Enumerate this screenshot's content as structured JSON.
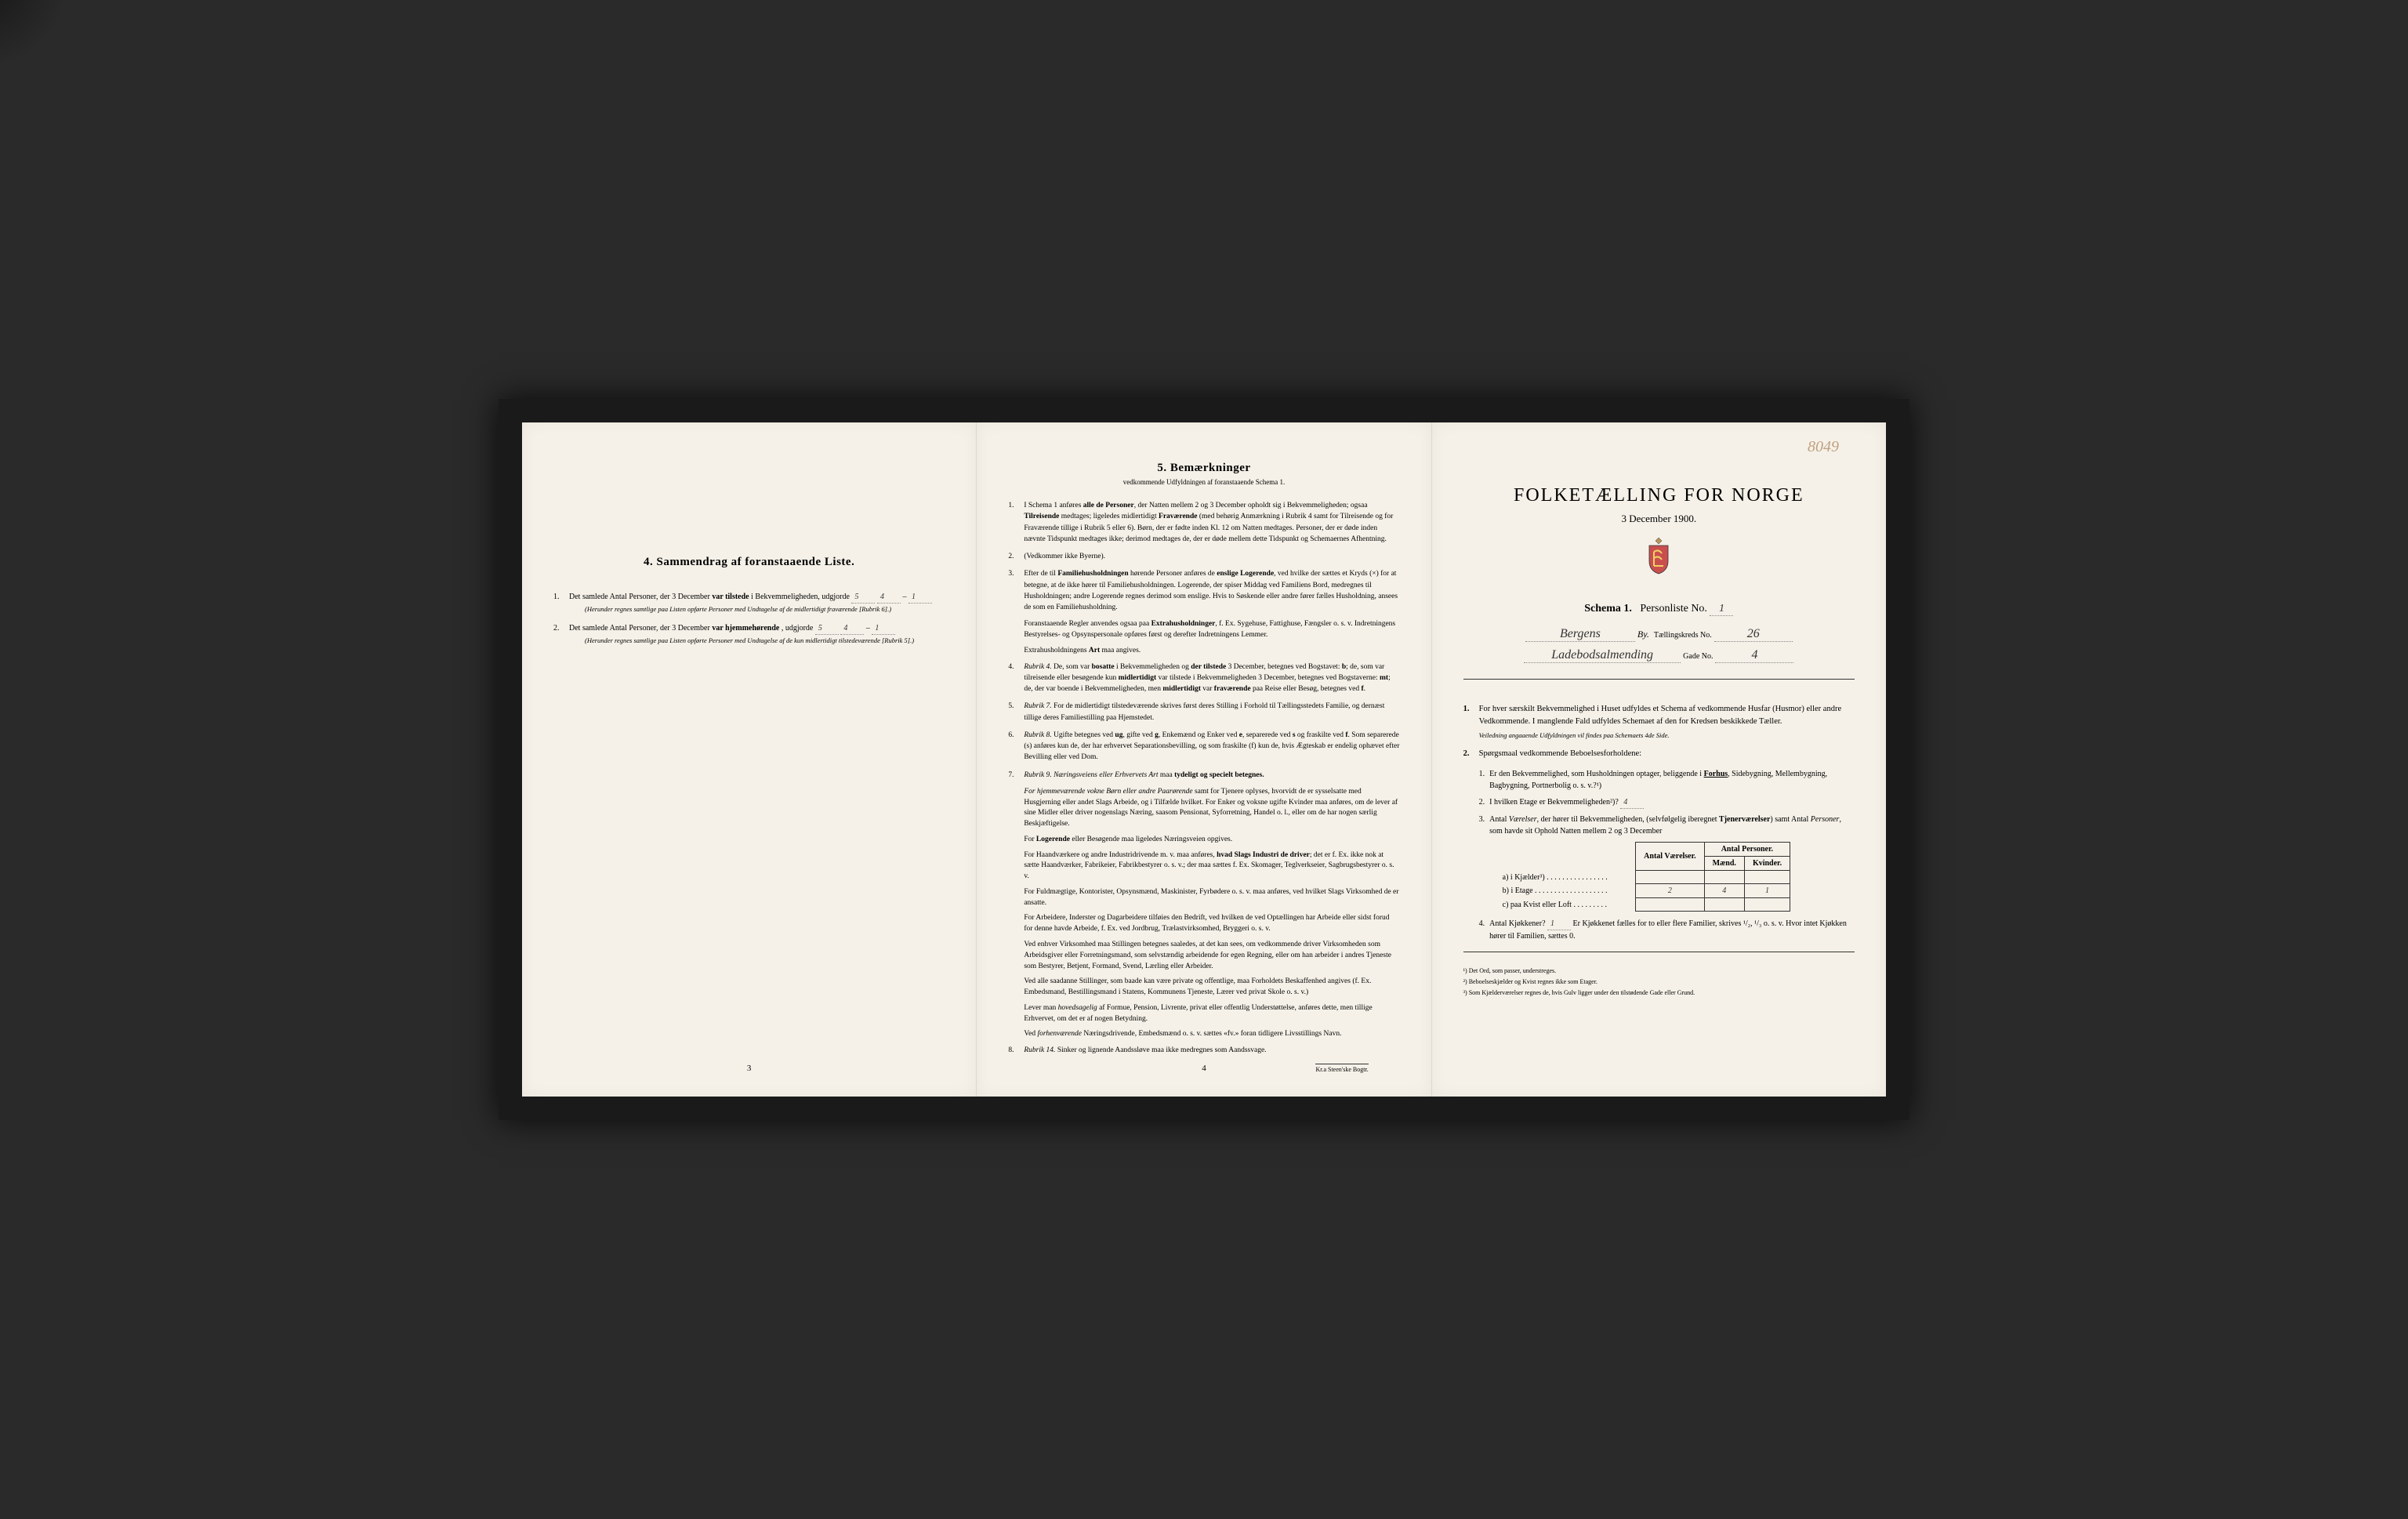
{
  "pencil_annotation": "8049",
  "left_page": {
    "heading": "4. Sammendrag af foranstaaende Liste.",
    "item1_prefix": "Det samlede Antal Personer, der 3 December",
    "item1_bold": "var tilstede",
    "item1_suffix": "i Bekvemmeligheden, udgjorde",
    "item1_val_total": "5",
    "item1_val_m": "4",
    "item1_val_k": "1",
    "item1_note": "(Herunder regnes samtlige paa Listen opførte Personer med Undtagelse af de midlertidigt fraværende [Rubrik 6].)",
    "item2_prefix": "Det samlede Antal Personer, der 3 December",
    "item2_bold": "var hjemmehørende",
    "item2_suffix": ", udgjorde",
    "item2_val_total": "5",
    "item2_val_m": "4",
    "item2_val_k": "1",
    "item2_note": "(Herunder regnes samtlige paa Listen opførte Personer med Undtagelse af de kun midlertidigt tilstedeværende [Rubrik 5].)",
    "page_num": "3"
  },
  "middle_page": {
    "heading": "5. Bemærkninger",
    "subheading": "vedkommende Udfyldningen af foranstaaende Schema 1.",
    "items": [
      {
        "num": "1.",
        "text": "I Schema 1 anføres <b>alle de Personer</b>, der Natten mellem 2 og 3 December opholdt sig i Bekvemmeligheden; ogsaa <b>Tilreisende</b> medtages; ligeledes midlertidigt <b>Fraværende</b> (med behørig Anmærkning i Rubrik 4 samt for Tilreisende og for Fraværende tillige i Rubrik 5 eller 6). Børn, der er fødte inden Kl. 12 om Natten medtages. Personer, der er døde inden nævnte Tidspunkt medtages ikke; derimod medtages de, der er døde mellem dette Tidspunkt og Schemaernes Afhentning."
      },
      {
        "num": "2.",
        "text": "(Vedkommer ikke Byerne)."
      },
      {
        "num": "3.",
        "text": "Efter de til <b>Familiehusholdningen</b> hørende Personer anføres de <b>enslige Logerende</b>, ved hvilke der sættes et Kryds (×) for at betegne, at de ikke hører til Familiehusholdningen. Logerende, der spiser Middag ved Familiens Bord, medregnes til Husholdningen; andre Logerende regnes derimod som enslige. Hvis to Søskende eller andre fører fælles Husholdning, ansees de som en Familiehusholdning."
      },
      {
        "num": "",
        "text": "Foranstaaende Regler anvendes ogsaa paa <b>Extrahusholdninger</b>, f. Ex. Sygehuse, Fattighuse, Fængsler o. s. v. Indretningens Bestyrelses- og Opsynspersonale opføres først og derefter Indretningens Lemmer."
      },
      {
        "num": "",
        "text": "Extrahusholdningens <b>Art</b> maa angives."
      },
      {
        "num": "4.",
        "text": "<i>Rubrik 4.</i> De, som var <b>bosatte</b> i Bekvemmeligheden og <b>der tilstede</b> 3 December, betegnes ved Bogstavet: <b>b</b>; de, som var tilreisende eller besøgende kun <b>midlertidigt</b> var tilstede i Bekvemmeligheden 3 December, betegnes ved Bogstaverne: <b>mt</b>; de, der var boende i Bekvemmeligheden, men <b>midlertidigt</b> var <b>fraværende</b> paa Reise eller Besøg, betegnes ved <b>f</b>."
      },
      {
        "num": "5.",
        "text": "<i>Rubrik 7.</i> For de midlertidigt tilstedeværende skrives først deres Stilling i Forhold til Tællingsstedets Familie, og dernæst tillige deres Familiestilling paa Hjemstedet."
      },
      {
        "num": "6.",
        "text": "<i>Rubrik 8.</i> Ugifte betegnes ved <b>ug</b>, gifte ved <b>g</b>, Enkemænd og Enker ved <b>e</b>, separerede ved <b>s</b> og fraskilte ved <b>f</b>. Som separerede (s) anføres kun de, der har erhvervet Separationsbevilling, og som fraskilte (f) kun de, hvis Ægteskab er endelig ophævet efter Bevilling eller ved Dom."
      },
      {
        "num": "7.",
        "text": "<i>Rubrik 9.</i> <i>Næringsveiens eller Erhvervets Art</i> maa <b>tydeligt og specielt betegnes.</b>"
      },
      {
        "num": "",
        "text": "<i>For hjemmeværende vokne Børn eller andre Paarørende</i> samt for Tjenere oplyses, hvorvidt de er sysselsatte med Husgjerning eller andet Slags Arbeide, og i Tilfælde hvilket. For Enker og voksne ugifte Kvinder maa anføres, om de lever af sine Midler eller driver nogenslags Næring, saasom Pensionat, Syforretning, Handel o. l., eller om de har nogen særlig Beskjæftigelse."
      },
      {
        "num": "",
        "text": "For <b>Logerende</b> eller Besøgende maa ligeledes Næringsveien opgives."
      },
      {
        "num": "",
        "text": "For Haandværkere og andre Industridrivende m. v. maa anføres, <b>hvad Slags Industri de driver</b>; det er f. Ex. ikke nok at sætte Haandværker, Fabrikeier, Fabrikbestyrer o. s. v.; der maa sættes f. Ex. Skomager, Teglverkseier, Sagbrugsbestyrer o. s. v."
      },
      {
        "num": "",
        "text": "For Fuldmægtige, Kontorister, Opsynsmænd, Maskinister, Fyrbødere o. s. v. maa anføres, ved hvilket Slags Virksomhed de er ansatte."
      },
      {
        "num": "",
        "text": "For Arbeidere, Inderster og Dagarbeidere tilføies den Bedrift, ved hvilken de ved Optællingen har Arbeide eller sidst forud for denne havde Arbeide, f. Ex. ved Jordbrug, Trælastvirksomhed, Bryggeri o. s. v."
      },
      {
        "num": "",
        "text": "Ved enhver Virksomhed maa Stillingen betegnes saaledes, at det kan sees, om vedkommende driver Virksomheden som Arbeidsgiver eller Forretningsmand, som selvstændig arbeidende for egen Regning, eller om han arbeider i andres Tjeneste som Bestyrer, Betjent, Formand, Svend, Lærling eller Arbeider."
      },
      {
        "num": "",
        "text": "Ved alle saadanne Stillinger, som baade kan være private og offentlige, maa Forholdets Beskaffenhed angives (f. Ex. Embedsmand, Bestillingsmand i Statens, Kommunens Tjeneste, Lærer ved privat Skole o. s. v.)"
      },
      {
        "num": "",
        "text": "Lever man <i>hovedsagelig</i> af Formue, Pension, Livrente, privat eller offentlig Understøttelse, anføres dette, men tillige Erhvervet, om det er af nogen Betydning."
      },
      {
        "num": "",
        "text": "Ved <i>forhenværende</i> Næringsdrivende, Embedsmænd o. s. v. sættes «fv.» foran tidligere Livsstillings Navn."
      },
      {
        "num": "8.",
        "text": "<i>Rubrik 14.</i> Sinker og lignende Aandssløve maa ikke medregnes som Aandssvage."
      }
    ],
    "page_num": "4",
    "imprint": "Kr.a Steen'ske Bogtr."
  },
  "right_page": {
    "title": "FOLKETÆLLING FOR NORGE",
    "date": "3 December 1900.",
    "schema_label": "Schema 1.",
    "personliste_label": "Personliste No.",
    "personliste_no": "1",
    "by_value": "Bergens",
    "by_label": "By.",
    "kreds_label": "Tællingskreds No.",
    "kreds_no": "26",
    "gade_value": "Ladebodsalmending",
    "gade_label": "Gade No.",
    "gade_no": "4",
    "instr1": "For hver særskilt Bekvemmelighed i Huset udfyldes et Schema af vedkommende Husfar (Husmor) eller andre Vedkommende. I manglende Fald udfyldes Schemaet af den for Kredsen beskikkede Tæller.",
    "instr1_note": "Veiledning angaaende Udfyldningen vil findes paa Schemaets 4de Side.",
    "instr2_heading": "Spørgsmaal vedkommende Beboelsesforholdene:",
    "q1": "Er den Bekvemmelighed, som Husholdningen optager, beliggende i <b><u>Forhus</u></b>, Sidebygning, Mellembygning, Bagbygning, Portnerbolig o. s. v.?¹)",
    "q2_prefix": "I hvilken Etage er Bekvemmeligheden²)?",
    "q2_value": "4",
    "q3": "Antal <i>Værelser</i>, der hører til Bekvemmeligheden, (selvfølgelig iberegnet <b>Tjenerværelser</b>) samt Antal <i>Personer</i>, som havde sit Ophold Natten mellem 2 og 3 December",
    "table": {
      "col1": "Antal Værelser.",
      "col2": "Antal Personer.",
      "col2a": "Mænd.",
      "col2b": "Kvinder.",
      "row_a": "a) i Kjælder³) . . . . . . . . . . . . . . . .",
      "row_b": "b) i Etage . . . . . . . . . . . . . . . . . . .",
      "row_c": "c) paa Kvist eller Loft . . . . . . . . .",
      "b_rooms": "2",
      "b_m": "4",
      "b_k": "1"
    },
    "q4_prefix": "Antal Kjøkkener?",
    "q4_value": "1",
    "q4_suffix": "Er Kjøkkenet fælles for to eller flere Familier, skrives ¹/₂, ¹/₃ o. s. v. Hvor intet Kjøkken hører til Familien, sættes 0.",
    "fn1": "¹) Det Ord, som passer, understreges.",
    "fn2": "²) Beboelseskjælder og Kvist regnes ikke som Etager.",
    "fn3": "³) Som Kjælderværelser regnes de, hvis Gulv ligger under den tilstødende Gade eller Grund."
  },
  "colors": {
    "paper": "#f5f1e8",
    "ink": "#1a1a1a",
    "pencil": "#c0a080"
  }
}
